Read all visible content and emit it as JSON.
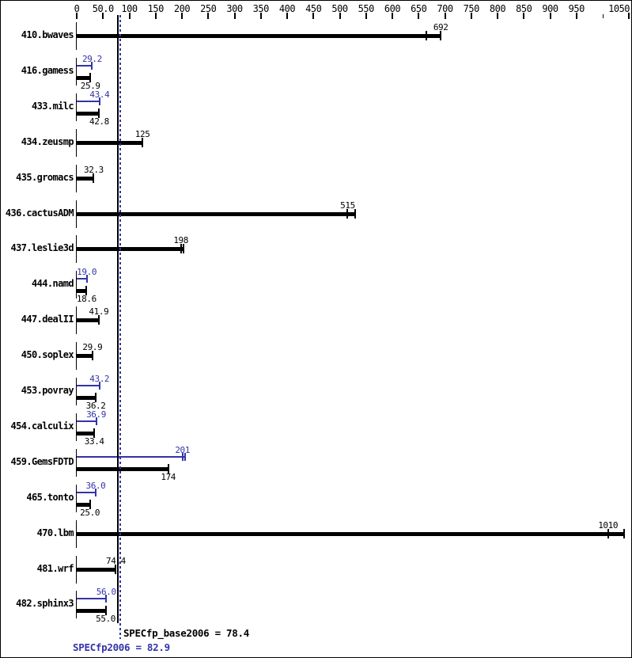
{
  "summary": {
    "base_label": "SPECfp_base2006 = 78.4",
    "peak_label": "SPECfp2006 = 82.9"
  },
  "colors": {
    "base": "#000000",
    "peak": "#3333aa",
    "background": "#ffffff"
  },
  "chart_data": {
    "type": "bar",
    "orientation": "horizontal",
    "title": "",
    "xlabel": "",
    "ylabel": "",
    "axis": {
      "min": 0,
      "max": 1060,
      "grid": false,
      "ticks": [
        {
          "value": 0,
          "label": "0"
        },
        {
          "value": 50,
          "label": "50.0"
        },
        {
          "value": 100,
          "label": "100"
        },
        {
          "value": 150,
          "label": "150"
        },
        {
          "value": 200,
          "label": "200"
        },
        {
          "value": 250,
          "label": "250"
        },
        {
          "value": 300,
          "label": "300"
        },
        {
          "value": 350,
          "label": "350"
        },
        {
          "value": 400,
          "label": "400"
        },
        {
          "value": 450,
          "label": "450"
        },
        {
          "value": 500,
          "label": "500"
        },
        {
          "value": 550,
          "label": "550"
        },
        {
          "value": 600,
          "label": "600"
        },
        {
          "value": 650,
          "label": "650"
        },
        {
          "value": 700,
          "label": "700"
        },
        {
          "value": 750,
          "label": "750"
        },
        {
          "value": 800,
          "label": "800"
        },
        {
          "value": 850,
          "label": "850"
        },
        {
          "value": 900,
          "label": "900"
        },
        {
          "value": 950,
          "label": "950"
        },
        {
          "value": 1000,
          "label": ""
        },
        {
          "value": 1050,
          "label": "1050"
        }
      ]
    },
    "series": [
      {
        "name": "peak",
        "color": "#3333aa"
      },
      {
        "name": "base",
        "color": "#000000"
      }
    ],
    "benchmarks": [
      {
        "name": "410.bwaves",
        "base": {
          "value": 692,
          "label": "692",
          "runs": [
            664,
            692
          ]
        }
      },
      {
        "name": "416.gamess",
        "peak": {
          "value": 29.2,
          "label": "29.2"
        },
        "base": {
          "value": 25.9,
          "label": "25.9"
        }
      },
      {
        "name": "433.milc",
        "peak": {
          "value": 43.4,
          "label": "43.4"
        },
        "base": {
          "value": 42.8,
          "label": "42.8"
        }
      },
      {
        "name": "434.zeusmp",
        "base": {
          "value": 125,
          "label": "125"
        }
      },
      {
        "name": "435.gromacs",
        "base": {
          "value": 32.3,
          "label": "32.3"
        }
      },
      {
        "name": "436.cactusADM",
        "base": {
          "value": 515,
          "label": "515",
          "runs": [
            515,
            529
          ]
        }
      },
      {
        "name": "437.leslie3d",
        "base": {
          "value": 198,
          "label": "198",
          "runs": [
            198,
            203
          ]
        }
      },
      {
        "name": "444.namd",
        "peak": {
          "value": 19.0,
          "label": "19.0"
        },
        "base": {
          "value": 18.6,
          "label": "18.6"
        }
      },
      {
        "name": "447.dealII",
        "base": {
          "value": 41.9,
          "label": "41.9"
        }
      },
      {
        "name": "450.soplex",
        "base": {
          "value": 29.9,
          "label": "29.9"
        }
      },
      {
        "name": "453.povray",
        "peak": {
          "value": 43.2,
          "label": "43.2"
        },
        "base": {
          "value": 36.2,
          "label": "36.2"
        }
      },
      {
        "name": "454.calculix",
        "peak": {
          "value": 36.9,
          "label": "36.9"
        },
        "base": {
          "value": 33.4,
          "label": "33.4"
        }
      },
      {
        "name": "459.GemsFDTD",
        "peak": {
          "value": 201,
          "label": "201",
          "runs": [
            201,
            206
          ]
        },
        "base": {
          "value": 174,
          "label": "174"
        }
      },
      {
        "name": "465.tonto",
        "peak": {
          "value": 36.0,
          "label": "36.0"
        },
        "base": {
          "value": 25.0,
          "label": "25.0"
        }
      },
      {
        "name": "470.lbm",
        "base": {
          "value": 1010,
          "label": "1010",
          "runs": [
            1010,
            1040
          ]
        }
      },
      {
        "name": "481.wrf",
        "base": {
          "value": 74.4,
          "label": "74.4"
        }
      },
      {
        "name": "482.sphinx3",
        "peak": {
          "value": 56.0,
          "label": "56.0"
        },
        "base": {
          "value": 55.0,
          "label": "55.0"
        }
      }
    ],
    "reference_lines": [
      {
        "value": 78.4,
        "series": "base",
        "style": "solid"
      },
      {
        "value": 82.9,
        "series": "peak",
        "style": "dotted"
      }
    ]
  }
}
